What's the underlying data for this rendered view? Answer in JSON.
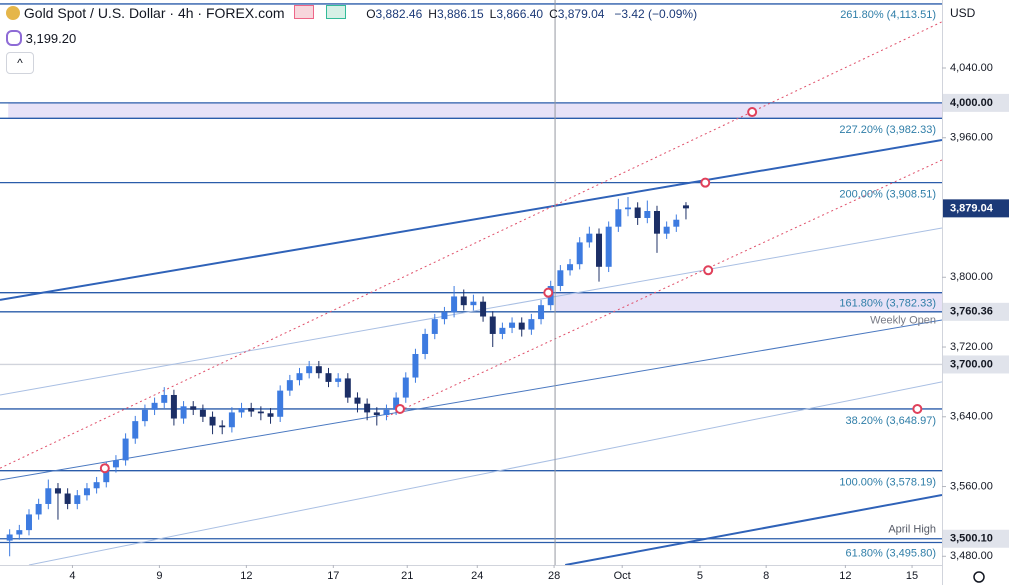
{
  "header": {
    "title": "Gold Spot / U.S. Dollar · 4h · FOREX.com",
    "ohlc": [
      {
        "label": "O",
        "value": "3,882.46"
      },
      {
        "label": "H",
        "value": "3,886.15"
      },
      {
        "label": "L",
        "value": "3,866.40"
      },
      {
        "label": "C",
        "value": "3,879.04"
      }
    ],
    "change": "−3.42 (−0.09%)",
    "indicator": "3,199.20",
    "currency": "USD"
  },
  "chart_data": {
    "type": "candlestick",
    "up_color": "#3d7be0",
    "down_color": "#1c2f66",
    "x": [
      2,
      4,
      6,
      8,
      10,
      12,
      14,
      16,
      18,
      20,
      22,
      24,
      26,
      28,
      30,
      32,
      34,
      36,
      38,
      40,
      42,
      44,
      46,
      48,
      50,
      52,
      54,
      56,
      58,
      60,
      62,
      64,
      66,
      68,
      70,
      72,
      74,
      76,
      78,
      80,
      82,
      84,
      86,
      88,
      90,
      92,
      94,
      96,
      98,
      100,
      102,
      104,
      106,
      108,
      110,
      112,
      114,
      116,
      118,
      120,
      122,
      124,
      126,
      128,
      130,
      132,
      134,
      136,
      138,
      140,
      142
    ],
    "open": [
      3498,
      3505,
      3510,
      3528,
      3540,
      3558,
      3552,
      3540,
      3550,
      3558,
      3565,
      3582,
      3590,
      3615,
      3635,
      3648,
      3656,
      3665,
      3638,
      3652,
      3648,
      3640,
      3630,
      3628,
      3645,
      3650,
      3646,
      3644,
      3640,
      3670,
      3682,
      3690,
      3698,
      3690,
      3680,
      3684,
      3662,
      3655,
      3645,
      3642,
      3648,
      3662,
      3685,
      3712,
      3735,
      3752,
      3760,
      3778,
      3768,
      3772,
      3755,
      3735,
      3742,
      3748,
      3740,
      3752,
      3768,
      3790,
      3808,
      3815,
      3840,
      3850,
      3812,
      3858,
      3878,
      3880,
      3868,
      3876,
      3850,
      3858,
      3882.46
    ],
    "high": [
      3511,
      3516,
      3534,
      3546,
      3568,
      3564,
      3558,
      3556,
      3564,
      3571,
      3588,
      3596,
      3621,
      3641,
      3654,
      3662,
      3674,
      3671,
      3658,
      3658,
      3654,
      3646,
      3636,
      3651,
      3656,
      3656,
      3652,
      3650,
      3676,
      3688,
      3696,
      3704,
      3704,
      3696,
      3690,
      3690,
      3668,
      3661,
      3651,
      3654,
      3668,
      3691,
      3718,
      3741,
      3758,
      3766,
      3790,
      3786,
      3780,
      3778,
      3761,
      3748,
      3754,
      3754,
      3758,
      3774,
      3796,
      3814,
      3821,
      3846,
      3858,
      3856,
      3864,
      3890,
      3892,
      3886,
      3888,
      3882,
      3864,
      3872,
      3886.15
    ],
    "low": [
      3480,
      3499,
      3504,
      3522,
      3534,
      3522,
      3534,
      3534,
      3544,
      3552,
      3559,
      3576,
      3584,
      3609,
      3629,
      3642,
      3650,
      3630,
      3632,
      3642,
      3634,
      3620,
      3620,
      3622,
      3639,
      3640,
      3636,
      3632,
      3634,
      3664,
      3676,
      3684,
      3684,
      3674,
      3674,
      3656,
      3645,
      3636,
      3630,
      3636,
      3642,
      3656,
      3679,
      3706,
      3729,
      3746,
      3754,
      3762,
      3762,
      3749,
      3720,
      3729,
      3736,
      3732,
      3734,
      3746,
      3762,
      3784,
      3802,
      3809,
      3834,
      3795,
      3806,
      3852,
      3870,
      3860,
      3862,
      3828,
      3844,
      3852,
      3866.4
    ],
    "close": [
      3505,
      3510,
      3528,
      3540,
      3558,
      3552,
      3540,
      3550,
      3558,
      3565,
      3582,
      3590,
      3615,
      3635,
      3648,
      3656,
      3665,
      3638,
      3652,
      3648,
      3640,
      3630,
      3628,
      3645,
      3650,
      3646,
      3644,
      3640,
      3670,
      3682,
      3690,
      3698,
      3690,
      3680,
      3684,
      3662,
      3655,
      3645,
      3642,
      3648,
      3662,
      3685,
      3712,
      3735,
      3752,
      3760,
      3778,
      3768,
      3772,
      3755,
      3735,
      3742,
      3748,
      3740,
      3752,
      3768,
      3790,
      3808,
      3815,
      3840,
      3850,
      3812,
      3858,
      3878,
      3880,
      3868,
      3876,
      3850,
      3858,
      3866,
      3879.04
    ],
    "xlim": [
      0,
      195
    ],
    "ylim": [
      3470,
      4118
    ],
    "yticks": [
      {
        "value": 4040,
        "label": "4,040.00"
      },
      {
        "value": 3960,
        "label": "3,960.00"
      },
      {
        "value": 3800,
        "label": "3,800.00"
      },
      {
        "value": 3720,
        "label": "3,720.00"
      },
      {
        "value": 3640,
        "label": "3,640.00"
      },
      {
        "value": 3560,
        "label": "3,560.00"
      },
      {
        "value": 3480,
        "label": "3,480.00"
      }
    ],
    "xticks": [
      {
        "value": 15,
        "label": "4"
      },
      {
        "value": 33,
        "label": "9"
      },
      {
        "value": 51,
        "label": "12"
      },
      {
        "value": 69,
        "label": "17"
      },
      {
        "value": 84.3,
        "label": "21"
      },
      {
        "value": 98.8,
        "label": "24"
      },
      {
        "value": 114.7,
        "label": "28"
      },
      {
        "value": 128.8,
        "label": "Oct"
      },
      {
        "value": 144.9,
        "label": "5"
      },
      {
        "value": 158.6,
        "label": "8"
      },
      {
        "value": 175,
        "label": "12"
      },
      {
        "value": 188.8,
        "label": "15"
      }
    ],
    "price_labels": [
      {
        "value": 4000,
        "label": "4,000.00",
        "color": "#e0e3eb",
        "text_color": "#131722"
      },
      {
        "value": 3879.04,
        "label": "3,879.04",
        "color": "#1c3a78",
        "text_color": "#ffffff"
      },
      {
        "value": 3760.36,
        "label": "3,760.36",
        "color": "#e0e3eb",
        "text_color": "#131722"
      },
      {
        "value": 3700,
        "label": "3,700.00",
        "color": "#e0e3eb",
        "text_color": "#131722"
      },
      {
        "value": 3500.1,
        "label": "3,500.10",
        "color": "#e0e3eb",
        "text_color": "#131722"
      }
    ],
    "levels": [
      {
        "value": 4113.51,
        "label": "261.80% (4,113.51)",
        "color": "#2a5caa",
        "label_color": "#2f7ea8"
      },
      {
        "value": 4000,
        "color": "#2a5caa"
      },
      {
        "value": 3982.33,
        "label": "227.20% (3,982.33)",
        "color": "#2a5caa",
        "label_color": "#2f7ea8"
      },
      {
        "value": 3908.51,
        "label": "200.00% (3,908.51)",
        "color": "#2a5caa",
        "label_color": "#2f7ea8"
      },
      {
        "value": 3782.33,
        "label": "161.80% (3,782.33)",
        "color": "#2a5caa",
        "label_color": "#2f7ea8"
      },
      {
        "value": 3760.36,
        "label": "Weekly Open",
        "color": "#2a5caa",
        "label_color": "#787b86"
      },
      {
        "value": 3700,
        "color": "#d1d4dc"
      },
      {
        "value": 3648.97,
        "label": "38.20% (3,648.97)",
        "color": "#2a5caa",
        "label_color": "#2f7ea8"
      },
      {
        "value": 3578.19,
        "label": "100.00% (3,578.19)",
        "color": "#2a5caa",
        "label_color": "#2f7ea8"
      },
      {
        "value": 3500.1,
        "label": "April High",
        "color": "#2a5caa",
        "label_color": "#555a66"
      },
      {
        "value": 3495.8,
        "label": "61.80% (3,495.80)",
        "color": "#2a5caa",
        "label_color": "#2f7ea8"
      }
    ],
    "zones": [
      {
        "from": 3982.33,
        "to": 4000,
        "x0": 1.7,
        "color": "#e7e2f7"
      },
      {
        "from": 3760.36,
        "to": 3782.33,
        "x0": 115,
        "color": "#e7e2f7"
      }
    ],
    "trendlines": [
      {
        "x": [
          0,
          195
        ],
        "y": [
          3774,
          3957.4
        ],
        "color": "#2f62b8",
        "width": 2
      },
      {
        "x": [
          0,
          195
        ],
        "y": [
          3567.5,
          3751
        ],
        "color": "#4a78c0",
        "width": 1
      },
      {
        "x": [
          0,
          195
        ],
        "y": [
          3665,
          3856.5
        ],
        "color": "#a9bfe3",
        "width": 1
      },
      {
        "x": [
          6,
          195
        ],
        "y": [
          3470,
          3680
        ],
        "color": "#a9bfe3",
        "width": 1
      },
      {
        "x": [
          117,
          195
        ],
        "y": [
          3470,
          3550.3
        ],
        "color": "#2f62b8",
        "width": 2
      },
      {
        "x": [
          0,
          195
        ],
        "y": [
          3581,
          4093
        ],
        "color": "#e0506a",
        "width": 1,
        "dash": true
      },
      {
        "x": [
          80,
          195
        ],
        "y": [
          3640,
          3934.5
        ],
        "color": "#e0506a",
        "width": 1,
        "dash": true
      }
    ],
    "vline": 114.9,
    "markers": {
      "x": [
        21.7,
        82.8,
        113.5,
        146,
        146.6,
        155.7,
        189.9
      ],
      "y": [
        3581,
        3648.97,
        3782.33,
        3908.51,
        3808,
        3989.5,
        3648.97
      ],
      "color": "#e0405a"
    }
  }
}
